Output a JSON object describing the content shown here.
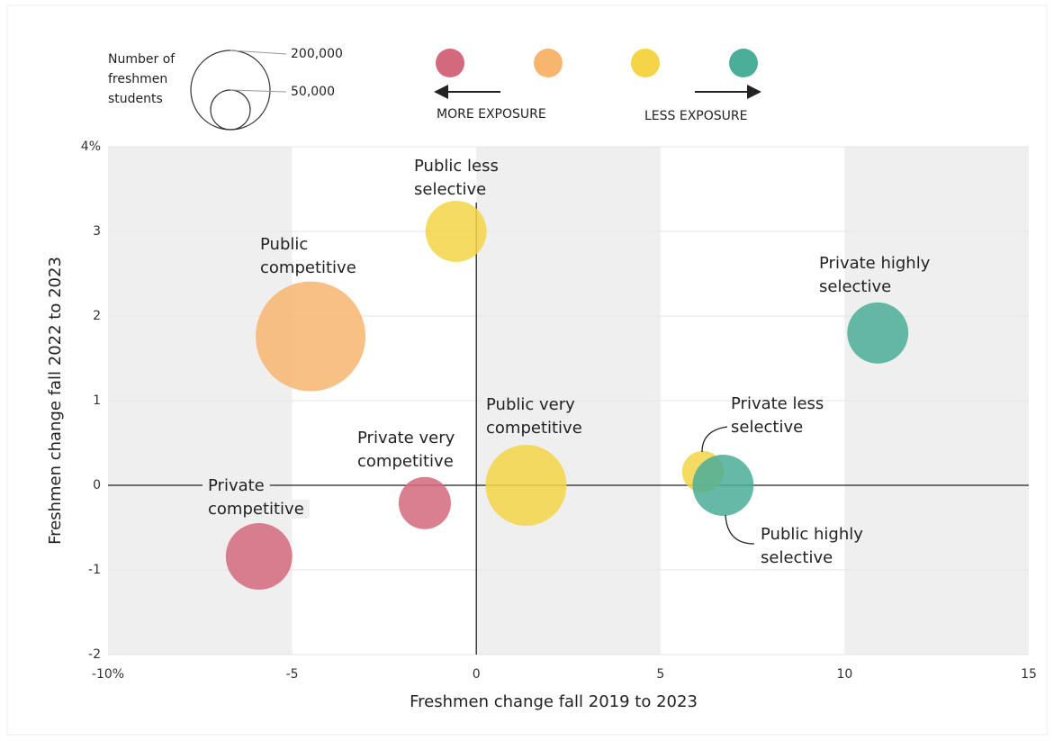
{
  "chart_data": {
    "type": "bubble",
    "x_label": "Freshmen change fall 2019 to 2023",
    "y_label": "Freshmen change fall 2022 to 2023",
    "xlim": [
      -10,
      15
    ],
    "ylim": [
      -2,
      4
    ],
    "xticks": [
      {
        "value": -10,
        "label": "-10%"
      },
      -5,
      0,
      5,
      10,
      15
    ],
    "yticks": [
      -2,
      -1,
      0,
      1,
      2,
      3,
      {
        "value": 4,
        "label": "4%"
      }
    ],
    "bands": [
      [
        -10,
        -5
      ],
      [
        0,
        5
      ],
      [
        10,
        15
      ]
    ],
    "grid": true,
    "size_legend_title": [
      "Number of",
      "freshmen",
      "students"
    ],
    "size_legend": [
      {
        "value": 200000,
        "label": "200,000"
      },
      {
        "value": 50000,
        "label": "50,000"
      }
    ],
    "exposure_colors": [
      "#d4697d",
      "#f7b56e",
      "#f5d547",
      "#4aae98"
    ],
    "more_exposure": "MORE EXPOSURE",
    "less_exposure": "LESS EXPOSURE",
    "points": [
      {
        "label": [
          "Private",
          "competitive"
        ],
        "x": -5.9,
        "y": -0.84,
        "size": 141000,
        "color": "#d4697d"
      },
      {
        "label": [
          "Public",
          "competitive"
        ],
        "x": -4.5,
        "y": 1.76,
        "size": 384000,
        "color": "#f7b56e"
      },
      {
        "label": [
          "Private very",
          "competitive"
        ],
        "x": -1.4,
        "y": -0.21,
        "size": 87000,
        "color": "#d4697d"
      },
      {
        "label": [
          "Public less",
          "selective"
        ],
        "x": -0.55,
        "y": 3.0,
        "size": 119000,
        "color": "#f5d547"
      },
      {
        "label": [
          "Public very",
          "competitive"
        ],
        "x": 1.35,
        "y": 0.0,
        "size": 209000,
        "color": "#f5d547"
      },
      {
        "label": [
          "Private less",
          "selective"
        ],
        "x": 6.15,
        "y": 0.16,
        "size": 55000,
        "color": "#f5d547"
      },
      {
        "label": [
          "Public highly",
          "selective"
        ],
        "x": 6.7,
        "y": 0.0,
        "size": 119000,
        "color": "#4aae98"
      },
      {
        "label": [
          "Private highly",
          "selective"
        ],
        "x": 10.9,
        "y": 1.8,
        "size": 119000,
        "color": "#4aae98"
      }
    ]
  }
}
